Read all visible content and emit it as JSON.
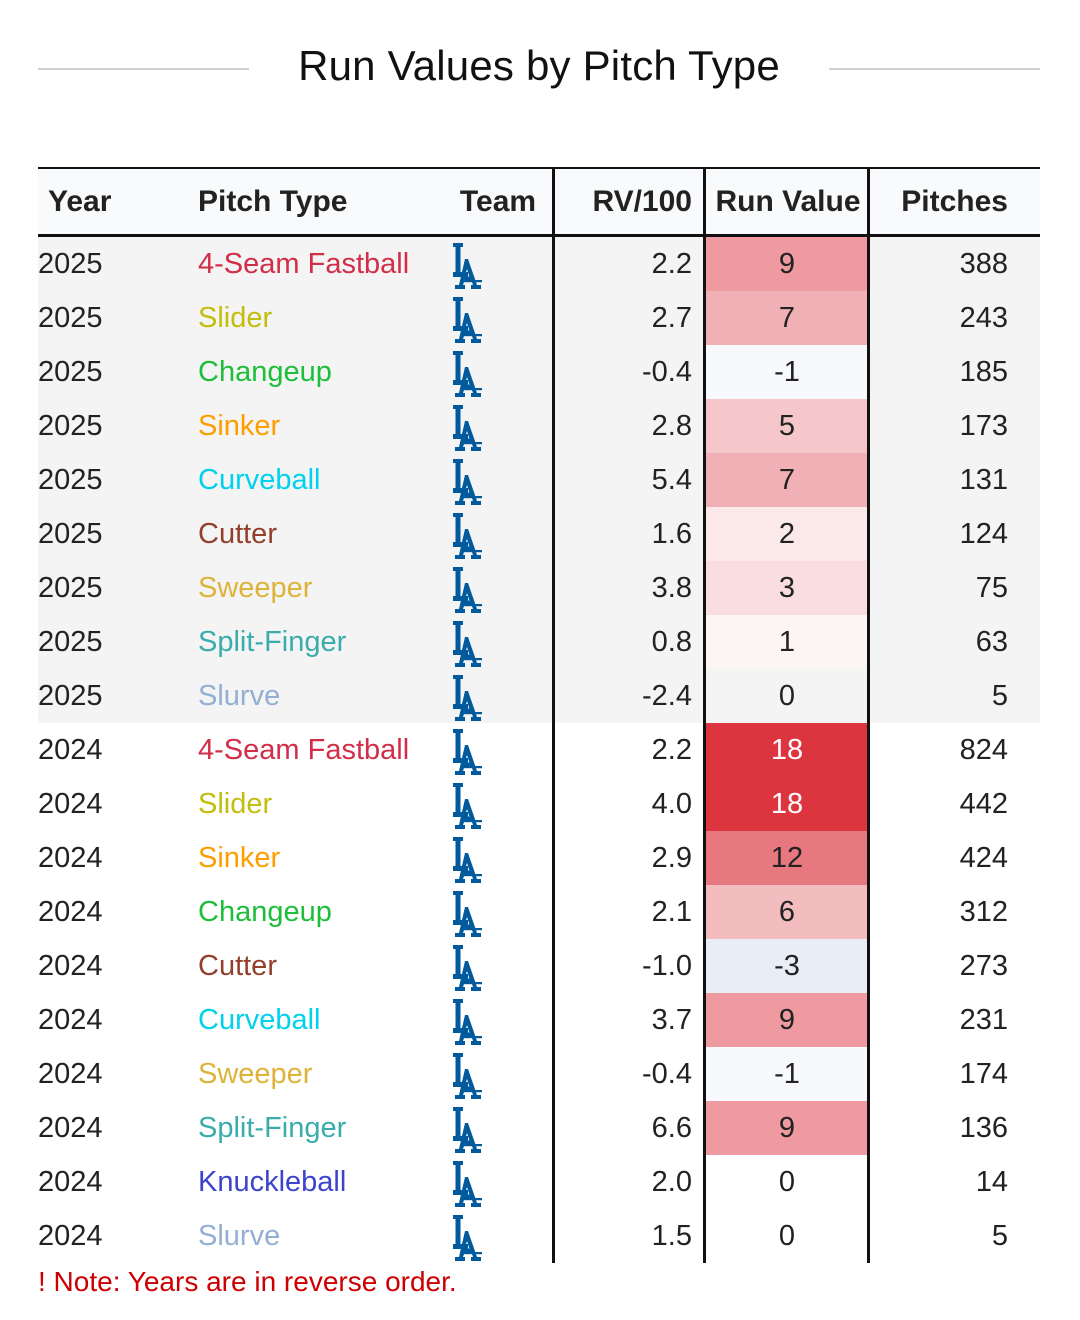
{
  "title": "Run Values by Pitch Type",
  "columns": [
    "Year",
    "Pitch Type",
    "Team",
    "RV/100",
    "Run Value",
    "Pitches"
  ],
  "team_icon": "la-dodgers-logo-icon",
  "colors": {
    "4-Seam Fastball": "#d22d49",
    "Slider": "#c3bd0e",
    "Changeup": "#1dbe3a",
    "Sinker": "#fe9d00",
    "Curveball": "#00d1ed",
    "Cutter": "#933f2c",
    "Sweeper": "#ddb33a",
    "Split-Finger": "#3bacac",
    "Slurve": "#93afd4",
    "Knuckleball": "#3c44cd",
    "team_blue": "#005a9c",
    "positive_rv": "#dc3540",
    "negative_rv": "#5a7fc0"
  },
  "chart_data": {
    "type": "table",
    "columns": [
      "Year",
      "Pitch Type",
      "Team",
      "RV/100",
      "Run Value",
      "Pitches"
    ],
    "rows": [
      {
        "year": "2025",
        "pitch": "4-Seam Fastball",
        "rv100": "2.2",
        "rv": "9",
        "pitches": "388"
      },
      {
        "year": "2025",
        "pitch": "Slider",
        "rv100": "2.7",
        "rv": "7",
        "pitches": "243"
      },
      {
        "year": "2025",
        "pitch": "Changeup",
        "rv100": "-0.4",
        "rv": "-1",
        "pitches": "185"
      },
      {
        "year": "2025",
        "pitch": "Sinker",
        "rv100": "2.8",
        "rv": "5",
        "pitches": "173"
      },
      {
        "year": "2025",
        "pitch": "Curveball",
        "rv100": "5.4",
        "rv": "7",
        "pitches": "131"
      },
      {
        "year": "2025",
        "pitch": "Cutter",
        "rv100": "1.6",
        "rv": "2",
        "pitches": "124"
      },
      {
        "year": "2025",
        "pitch": "Sweeper",
        "rv100": "3.8",
        "rv": "3",
        "pitches": "75"
      },
      {
        "year": "2025",
        "pitch": "Split-Finger",
        "rv100": "0.8",
        "rv": "1",
        "pitches": "63"
      },
      {
        "year": "2025",
        "pitch": "Slurve",
        "rv100": "-2.4",
        "rv": "0",
        "pitches": "5"
      },
      {
        "year": "2024",
        "pitch": "4-Seam Fastball",
        "rv100": "2.2",
        "rv": "18",
        "pitches": "824"
      },
      {
        "year": "2024",
        "pitch": "Slider",
        "rv100": "4.0",
        "rv": "18",
        "pitches": "442"
      },
      {
        "year": "2024",
        "pitch": "Sinker",
        "rv100": "2.9",
        "rv": "12",
        "pitches": "424"
      },
      {
        "year": "2024",
        "pitch": "Changeup",
        "rv100": "2.1",
        "rv": "6",
        "pitches": "312"
      },
      {
        "year": "2024",
        "pitch": "Cutter",
        "rv100": "-1.0",
        "rv": "-3",
        "pitches": "273"
      },
      {
        "year": "2024",
        "pitch": "Curveball",
        "rv100": "3.7",
        "rv": "9",
        "pitches": "231"
      },
      {
        "year": "2024",
        "pitch": "Sweeper",
        "rv100": "-0.4",
        "rv": "-1",
        "pitches": "174"
      },
      {
        "year": "2024",
        "pitch": "Split-Finger",
        "rv100": "6.6",
        "rv": "9",
        "pitches": "136"
      },
      {
        "year": "2024",
        "pitch": "Knuckleball",
        "rv100": "2.0",
        "rv": "0",
        "pitches": "14"
      },
      {
        "year": "2024",
        "pitch": "Slurve",
        "rv100": "1.5",
        "rv": "0",
        "pitches": "5"
      }
    ]
  },
  "note": "! Note: Years are in reverse order."
}
